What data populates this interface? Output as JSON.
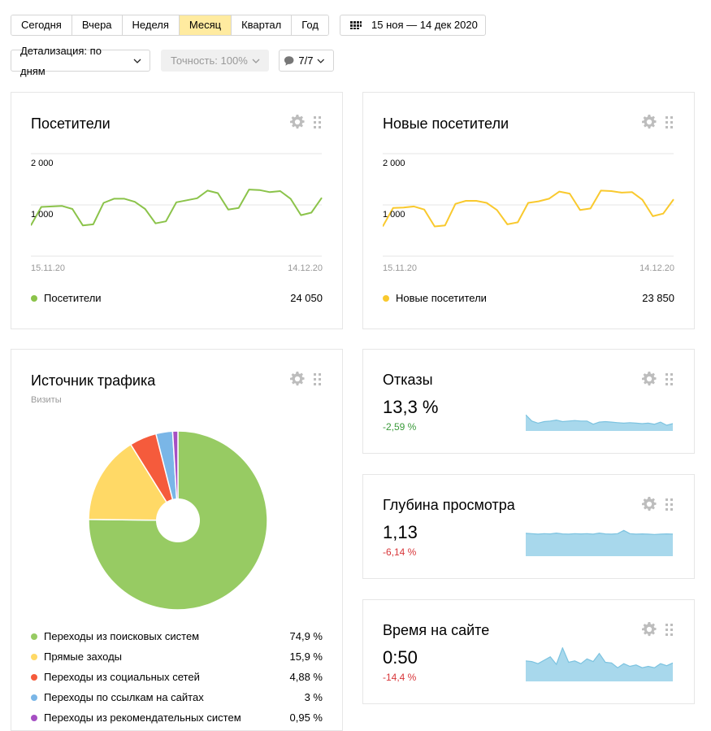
{
  "periods": [
    "Сегодня",
    "Вчера",
    "Неделя",
    "Месяц",
    "Квартал",
    "Год"
  ],
  "active_period": "Месяц",
  "date_range": "15 ноя — 14 дек 2020",
  "detail_dropdown": "Детализация: по дням",
  "accuracy_dropdown": "Точность: 100%",
  "segments_dropdown": "7/7",
  "colors": {
    "green": "#8bc34a",
    "yellow": "#f9c92e",
    "area": "#a8d8ec"
  },
  "visitors": {
    "title": "Посетители",
    "y_ticks": [
      "2 000",
      "1 000"
    ],
    "x_start": "15.11.20",
    "x_end": "14.12.20",
    "legend_name": "Посетители",
    "total": "24 050"
  },
  "new_visitors": {
    "title": "Новые посетители",
    "y_ticks": [
      "2 000",
      "1 000"
    ],
    "x_start": "15.11.20",
    "x_end": "14.12.20",
    "legend_name": "Новые посетители",
    "total": "23 850"
  },
  "traffic": {
    "title": "Источник трафика",
    "subtitle": "Визиты",
    "sources": [
      {
        "name": "Переходы из поисковых систем",
        "value": "74,9 %",
        "color": "#97cb63"
      },
      {
        "name": "Прямые заходы",
        "value": "15,9 %",
        "color": "#ffd966"
      },
      {
        "name": "Переходы из социальных сетей",
        "value": "4,88 %",
        "color": "#f55b3c"
      },
      {
        "name": "Переходы по ссылкам на сайтах",
        "value": "3 %",
        "color": "#7ab6e7"
      },
      {
        "name": "Переходы из рекомендательных систем",
        "value": "0,95 %",
        "color": "#a64fc3"
      }
    ]
  },
  "bounce": {
    "title": "Отказы",
    "value": "13,3 %",
    "delta": "-2,59 %",
    "delta_color": "#3a9a3a"
  },
  "depth": {
    "title": "Глубина просмотра",
    "value": "1,13",
    "delta": "-6,14 %",
    "delta_color": "#d8363a"
  },
  "time_on_site": {
    "title": "Время на сайте",
    "value": "0:50",
    "delta": "-14,4 %",
    "delta_color": "#d8363a"
  },
  "chart_data": [
    {
      "type": "line",
      "title": "Посетители",
      "x_start": "15.11.20",
      "x_end": "14.12.20",
      "ylim": [
        0,
        2000
      ],
      "series": [
        {
          "name": "Посетители",
          "values": [
            600,
            960,
            970,
            980,
            920,
            600,
            620,
            1040,
            1120,
            1120,
            1060,
            920,
            640,
            680,
            1050,
            1090,
            1130,
            1280,
            1230,
            910,
            940,
            1300,
            1290,
            1250,
            1270,
            1120,
            800,
            850,
            1140
          ]
        }
      ]
    },
    {
      "type": "line",
      "title": "Новые посетители",
      "x_start": "15.11.20",
      "x_end": "14.12.20",
      "ylim": [
        0,
        2000
      ],
      "series": [
        {
          "name": "Новые посетители",
          "values": [
            580,
            940,
            950,
            970,
            910,
            580,
            600,
            1020,
            1080,
            1080,
            1040,
            900,
            620,
            660,
            1040,
            1070,
            1120,
            1260,
            1220,
            900,
            930,
            1280,
            1270,
            1240,
            1250,
            1100,
            780,
            830,
            1110
          ]
        }
      ]
    },
    {
      "type": "pie",
      "title": "Источник трафика",
      "labels": [
        "Переходы из поисковых систем",
        "Прямые заходы",
        "Переходы из социальных сетей",
        "Переходы по ссылкам на сайтах",
        "Переходы из рекомендательных систем"
      ],
      "values": [
        74.9,
        15.9,
        4.88,
        3,
        0.95
      ]
    },
    {
      "type": "area",
      "title": "Отказы",
      "values": [
        0.62,
        0.38,
        0.3,
        0.36,
        0.38,
        0.42,
        0.36,
        0.38,
        0.4,
        0.38,
        0.38,
        0.26,
        0.34,
        0.36,
        0.34,
        0.32,
        0.3,
        0.32,
        0.3,
        0.28,
        0.3,
        0.26,
        0.34,
        0.22,
        0.28
      ]
    },
    {
      "type": "area",
      "title": "Глубина просмотра",
      "values": [
        0.85,
        0.84,
        0.82,
        0.84,
        0.83,
        0.86,
        0.83,
        0.82,
        0.84,
        0.83,
        0.84,
        0.82,
        0.86,
        0.83,
        0.82,
        0.84,
        0.96,
        0.84,
        0.82,
        0.83,
        0.82,
        0.81,
        0.82,
        0.83,
        0.82
      ]
    },
    {
      "type": "area",
      "title": "Время на сайте",
      "values": [
        0.6,
        0.58,
        0.52,
        0.62,
        0.72,
        0.5,
        0.98,
        0.56,
        0.6,
        0.52,
        0.66,
        0.58,
        0.82,
        0.56,
        0.54,
        0.4,
        0.52,
        0.44,
        0.48,
        0.4,
        0.44,
        0.4,
        0.52,
        0.46,
        0.54
      ]
    }
  ]
}
